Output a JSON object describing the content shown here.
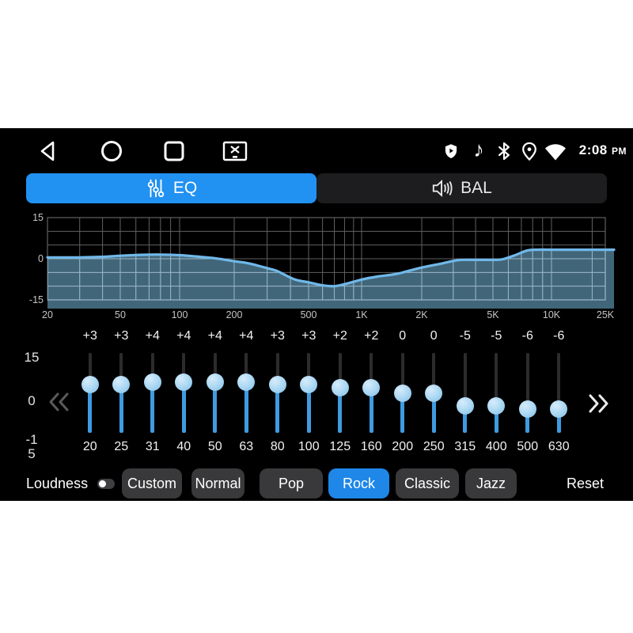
{
  "nav_bar": {
    "icons": [
      "back-icon",
      "home-icon",
      "recents-icon",
      "screenshot-icon"
    ]
  },
  "status_bar": {
    "icons": [
      "shield-icon",
      "music-note-icon",
      "bluetooth-icon",
      "location-icon",
      "wifi-icon"
    ],
    "time": "2:08",
    "meridiem": "PM"
  },
  "tabs": [
    {
      "id": "eq",
      "label": "EQ",
      "icon": "sliders-icon",
      "active": true
    },
    {
      "id": "bal",
      "label": "BAL",
      "icon": "speaker-icon",
      "active": false
    }
  ],
  "chart_data": {
    "type": "area",
    "title": "EQ frequency response curve",
    "x_axis": {
      "scale": "log",
      "tick_labels": [
        "20",
        "50",
        "100",
        "200",
        "500",
        "1K",
        "2K",
        "5K",
        "10K",
        "25K"
      ],
      "tick_freqs": [
        20,
        50,
        100,
        200,
        500,
        1000,
        2000,
        5000,
        10000,
        25000
      ],
      "minor_freqs": [
        30,
        40,
        60,
        70,
        80,
        90,
        300,
        400,
        600,
        700,
        800,
        900,
        3000,
        4000,
        6000,
        7000,
        8000,
        9000,
        20000
      ]
    },
    "y_axis": {
      "tick_labels": [
        "15",
        "0",
        "-15"
      ],
      "ticks": [
        15,
        0,
        -15
      ],
      "range": [
        -15,
        15
      ],
      "grid_step": 5
    },
    "x_anchors": [
      [
        20,
        60
      ],
      [
        50,
        152
      ],
      [
        100,
        227
      ],
      [
        200,
        296
      ],
      [
        500,
        390
      ],
      [
        1000,
        457
      ],
      [
        2000,
        533
      ],
      [
        5000,
        623
      ],
      [
        10000,
        697
      ],
      [
        25000,
        765
      ]
    ],
    "curve_points": [
      [
        20,
        0.5
      ],
      [
        25,
        0.5
      ],
      [
        30,
        0.5
      ],
      [
        40,
        0.7
      ],
      [
        50,
        1.1
      ],
      [
        63,
        1.4
      ],
      [
        80,
        1.5
      ],
      [
        100,
        1.3
      ],
      [
        130,
        0.7
      ],
      [
        160,
        0.1
      ],
      [
        200,
        -0.9
      ],
      [
        240,
        -1.7
      ],
      [
        310,
        -3.7
      ],
      [
        340,
        -4.5
      ],
      [
        420,
        -7.5
      ],
      [
        500,
        -8.6
      ],
      [
        600,
        -9.7
      ],
      [
        700,
        -10
      ],
      [
        800,
        -9.3
      ],
      [
        1000,
        -7.6
      ],
      [
        1200,
        -6.5
      ],
      [
        1500,
        -5.5
      ],
      [
        2000,
        -3.2
      ],
      [
        2600,
        -1.7
      ],
      [
        3200,
        -0.5
      ],
      [
        4000,
        -0.4
      ],
      [
        5000,
        -0.4
      ],
      [
        5600,
        -0.2
      ],
      [
        6500,
        1.3
      ],
      [
        7500,
        3.0
      ],
      [
        8500,
        3.3
      ],
      [
        10000,
        3.3
      ],
      [
        25000,
        3.3
      ]
    ],
    "colors": {
      "line": "#70b8e9",
      "fill": "rgba(127,195,232,0.52)",
      "grid": "#606060",
      "grid_inside": "#9db9cb",
      "label": "#c4c4c4"
    },
    "legend": "none",
    "grid": true
  },
  "equalizer": {
    "scale": {
      "max": "15",
      "mid": "0",
      "min_line1": "-1",
      "min_line2": "5"
    },
    "range": [
      -15,
      15
    ],
    "prev_icon": "chevrons-left-icon",
    "next_icon": "chevrons-right-icon",
    "bands": [
      {
        "freq": "20",
        "gain_label": "+3",
        "gain": 3
      },
      {
        "freq": "25",
        "gain_label": "+3",
        "gain": 3
      },
      {
        "freq": "31",
        "gain_label": "+4",
        "gain": 4
      },
      {
        "freq": "40",
        "gain_label": "+4",
        "gain": 4
      },
      {
        "freq": "50",
        "gain_label": "+4",
        "gain": 4
      },
      {
        "freq": "63",
        "gain_label": "+4",
        "gain": 4
      },
      {
        "freq": "80",
        "gain_label": "+3",
        "gain": 3
      },
      {
        "freq": "100",
        "gain_label": "+3",
        "gain": 3
      },
      {
        "freq": "125",
        "gain_label": "+2",
        "gain": 2
      },
      {
        "freq": "160",
        "gain_label": "+2",
        "gain": 2
      },
      {
        "freq": "200",
        "gain_label": "0",
        "gain": 0
      },
      {
        "freq": "250",
        "gain_label": "0",
        "gain": 0
      },
      {
        "freq": "315",
        "gain_label": "-5",
        "gain": -5
      },
      {
        "freq": "400",
        "gain_label": "-5",
        "gain": -5
      },
      {
        "freq": "500",
        "gain_label": "-6",
        "gain": -6
      },
      {
        "freq": "630",
        "gain_label": "-6",
        "gain": -6
      }
    ]
  },
  "presets": {
    "loudness_label": "Loudness",
    "loudness_on": false,
    "buttons": [
      {
        "label": "Custom",
        "active": false
      },
      {
        "label": "Normal",
        "active": false
      },
      {
        "label": "Pop",
        "active": false
      },
      {
        "label": "Rock",
        "active": true
      },
      {
        "label": "Classic",
        "active": false
      },
      {
        "label": "Jazz",
        "active": false
      }
    ],
    "reset_label": "Reset"
  },
  "colors": {
    "accent_blue": "#2191f2",
    "button_gray": "#39393b",
    "background": "#000000",
    "page": "#ffffff"
  }
}
